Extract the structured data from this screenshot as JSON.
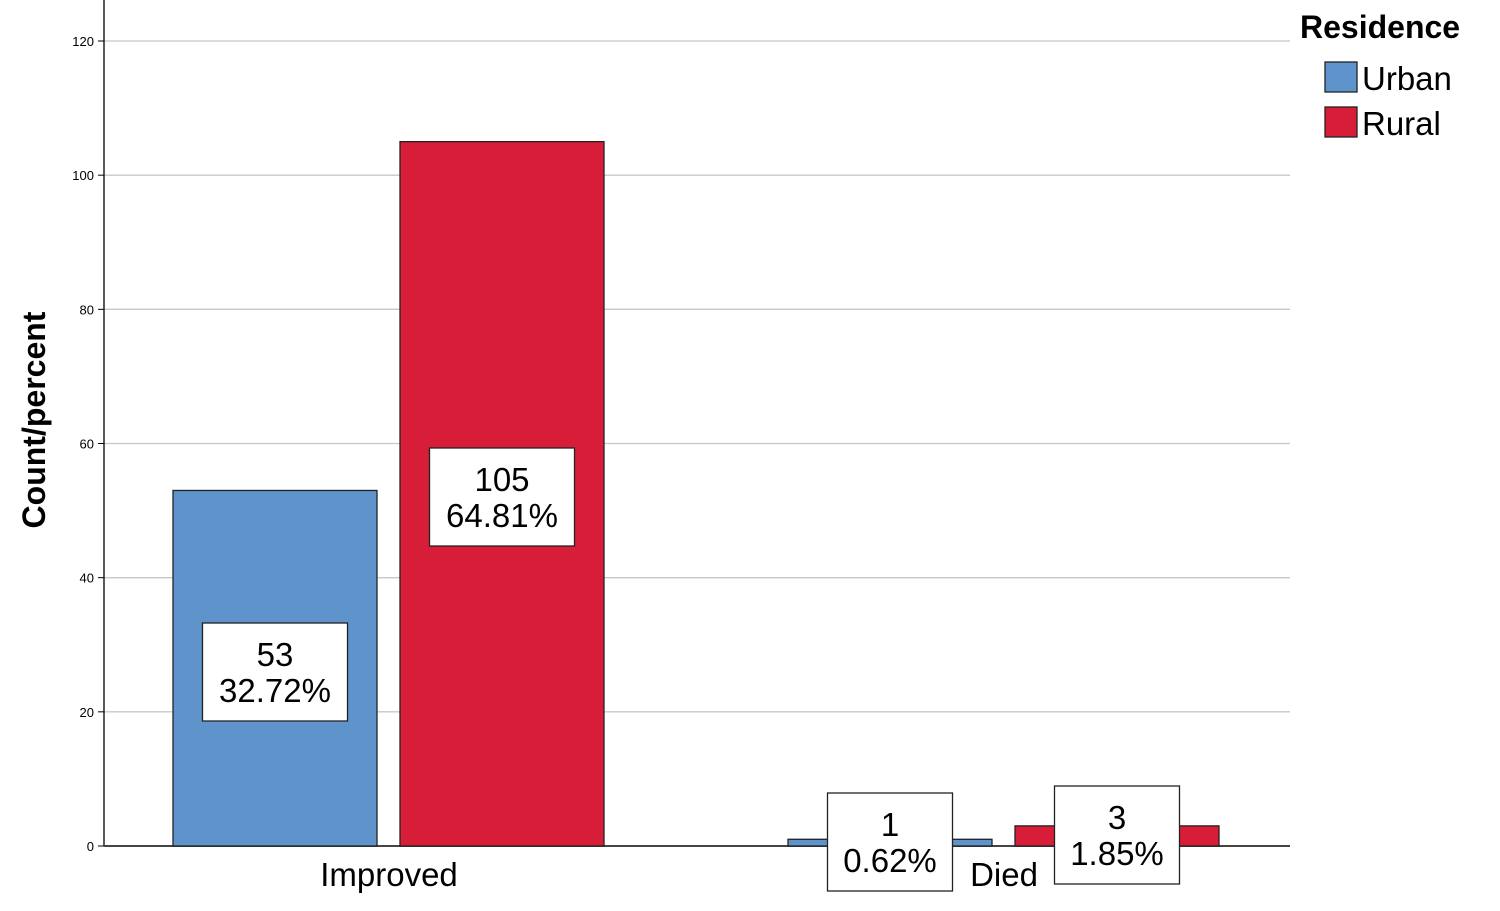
{
  "chart_data": {
    "type": "bar",
    "categories": [
      "Improved",
      "Died"
    ],
    "series": [
      {
        "name": "Urban",
        "color": "#5f93cc",
        "values": [
          53,
          1
        ],
        "percents": [
          "32.72%",
          "0.62%"
        ]
      },
      {
        "name": "Rural",
        "color": "#d71d37",
        "values": [
          105,
          3
        ],
        "percents": [
          "64.81%",
          "1.85%"
        ]
      }
    ],
    "title": "",
    "xlabel": "",
    "ylabel": "Count/percent",
    "ylim": [
      0,
      126
    ],
    "yticks": [
      0,
      20,
      40,
      60,
      80,
      100,
      120
    ],
    "grid": true,
    "legend": {
      "title": "Residence",
      "placement": "top-right"
    }
  }
}
